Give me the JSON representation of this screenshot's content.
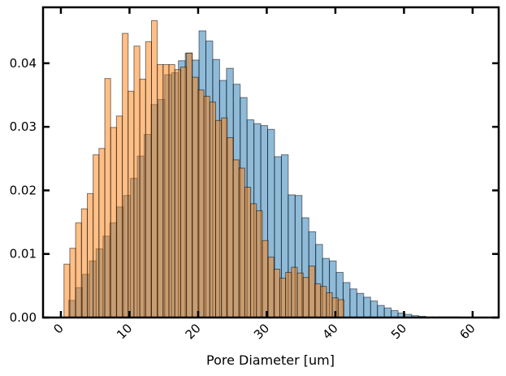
{
  "chart_data": {
    "type": "bar",
    "subtype": "overlapping-histogram",
    "title": "",
    "xlabel": "Pore Diameter [um]",
    "ylabel": "",
    "xlim": [
      -2.6,
      63.8
    ],
    "ylim": [
      0,
      0.0488
    ],
    "xticks": [
      0,
      10,
      20,
      30,
      40,
      50,
      60
    ],
    "xtick_labels": [
      "0",
      "10",
      "20",
      "30",
      "40",
      "50",
      "60"
    ],
    "xtick_rotation": 45,
    "yticks": [
      0.0,
      0.01,
      0.02,
      0.03,
      0.04
    ],
    "ytick_labels": [
      "0.00",
      "0.01",
      "0.02",
      "0.03",
      "0.04"
    ],
    "grid": false,
    "legend": "none",
    "series": [
      {
        "color": "#1f77b4",
        "alpha": 0.5,
        "bin_start": 1.13,
        "bin_width": 1.0,
        "values": [
          0.0027,
          0.0047,
          0.0068,
          0.0089,
          0.0108,
          0.0128,
          0.0149,
          0.0174,
          0.0192,
          0.0219,
          0.0254,
          0.0288,
          0.0335,
          0.0343,
          0.0382,
          0.0385,
          0.0404,
          0.0416,
          0.0405,
          0.0451,
          0.0435,
          0.0406,
          0.0373,
          0.0392,
          0.0367,
          0.0346,
          0.0311,
          0.0305,
          0.0302,
          0.0296,
          0.0253,
          0.0256,
          0.0193,
          0.0192,
          0.0157,
          0.0135,
          0.0115,
          0.0093,
          0.0089,
          0.0071,
          0.0055,
          0.0045,
          0.0038,
          0.0032,
          0.0026,
          0.0019,
          0.0015,
          0.0011,
          0.0007,
          0.0005,
          0.0003,
          0.0002,
          0.0001,
          0.0001,
          0.0001,
          0.0001,
          0.0001
        ]
      },
      {
        "color": "#ff7f0e",
        "alpha": 0.5,
        "bin_start": 0.45,
        "bin_width": 0.85,
        "values": [
          0.0084,
          0.0109,
          0.0149,
          0.0171,
          0.0195,
          0.0256,
          0.0266,
          0.0376,
          0.0299,
          0.0317,
          0.0447,
          0.0356,
          0.0427,
          0.0375,
          0.0434,
          0.0467,
          0.0398,
          0.0398,
          0.0398,
          0.039,
          0.0394,
          0.0416,
          0.0378,
          0.0358,
          0.0348,
          0.0339,
          0.031,
          0.0314,
          0.0283,
          0.0248,
          0.0235,
          0.0205,
          0.0179,
          0.0168,
          0.0121,
          0.0095,
          0.0076,
          0.0062,
          0.0071,
          0.0079,
          0.007,
          0.0063,
          0.0081,
          0.0053,
          0.0049,
          0.0039,
          0.0031,
          0.0028
        ]
      }
    ]
  }
}
